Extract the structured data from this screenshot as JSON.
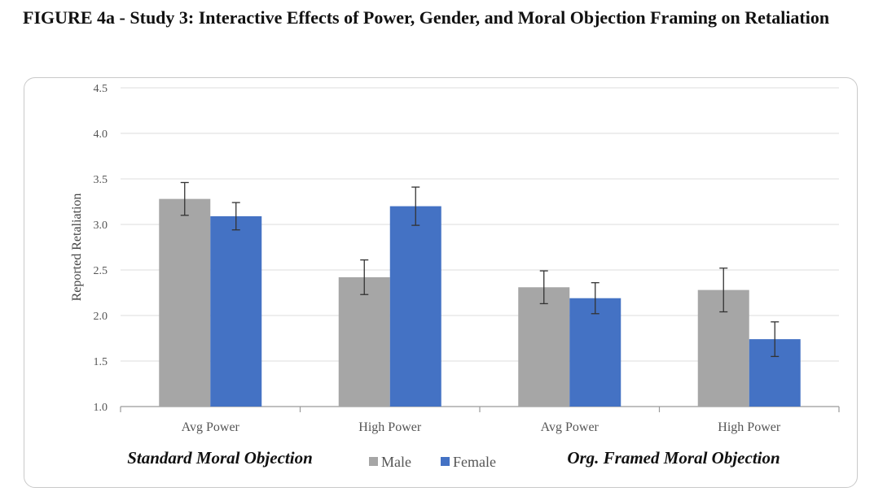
{
  "title": "FIGURE 4a - Study 3: Interactive Effects of Power, Gender, and Moral Objection Framing on Retaliation",
  "chart_data": {
    "type": "bar",
    "ylabel": "Reported Retaliation",
    "ylim": [
      1.0,
      4.5
    ],
    "yticks": [
      "1.0",
      "1.5",
      "2.0",
      "2.5",
      "3.0",
      "3.5",
      "4.0",
      "4.5"
    ],
    "grid": true,
    "categories": [
      "Avg Power",
      "High Power",
      "Avg Power",
      "High Power"
    ],
    "groups": [
      {
        "label": "Standard Moral Objection",
        "categories": [
          0,
          1
        ]
      },
      {
        "label": "Org. Framed Moral Objection",
        "categories": [
          2,
          3
        ]
      }
    ],
    "series": [
      {
        "name": "Male",
        "color": "#a6a6a6",
        "values": [
          3.28,
          2.42,
          2.31,
          2.28
        ],
        "error": [
          0.18,
          0.19,
          0.18,
          0.24
        ]
      },
      {
        "name": "Female",
        "color": "#4472c4",
        "values": [
          3.09,
          3.2,
          2.19,
          1.74
        ],
        "error": [
          0.15,
          0.21,
          0.17,
          0.19
        ]
      }
    ],
    "legend_position": "bottom-center"
  }
}
